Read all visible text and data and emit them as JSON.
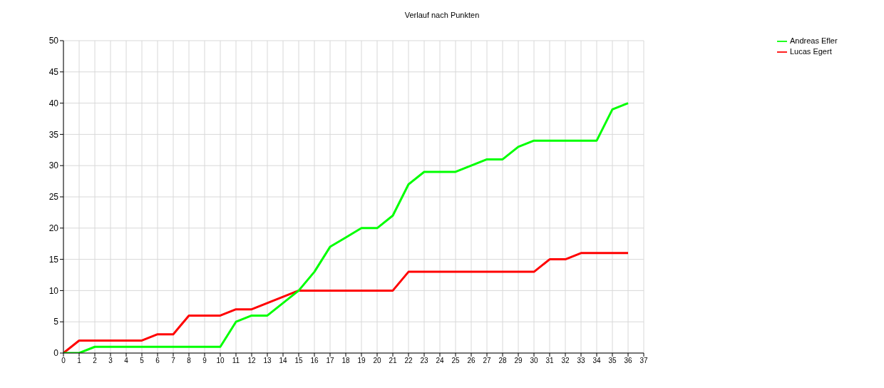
{
  "chart_data": {
    "type": "line",
    "title": "Verlauf nach Punkten",
    "x": [
      0,
      1,
      2,
      3,
      4,
      5,
      6,
      7,
      8,
      9,
      10,
      11,
      12,
      13,
      14,
      15,
      16,
      17,
      18,
      19,
      20,
      21,
      22,
      23,
      24,
      25,
      26,
      27,
      28,
      29,
      30,
      31,
      32,
      33,
      34,
      35,
      36
    ],
    "series": [
      {
        "name": "Lucas Egert",
        "color": "#ff0000",
        "values": [
          0,
          2,
          2,
          2,
          2,
          2,
          3,
          3,
          6,
          6,
          6,
          7,
          7,
          8,
          9,
          10,
          10,
          10,
          10,
          10,
          10,
          10,
          13,
          13,
          13,
          13,
          13,
          13,
          13,
          13,
          13,
          15,
          15,
          16,
          16,
          16,
          16
        ]
      },
      {
        "name": "Andreas Efler",
        "color": "#00ff00",
        "values": [
          0,
          0,
          1,
          1,
          1,
          1,
          1,
          1,
          1,
          1,
          1,
          5,
          6,
          6,
          8,
          10,
          13,
          17,
          18.5,
          20,
          20,
          22,
          27,
          29,
          29,
          29,
          30,
          31,
          31,
          33,
          34,
          34,
          34,
          34,
          34,
          39,
          40
        ]
      }
    ],
    "xlim": [
      0,
      37
    ],
    "xticks": [
      0,
      1,
      2,
      3,
      4,
      5,
      6,
      7,
      8,
      9,
      10,
      11,
      12,
      13,
      14,
      15,
      16,
      17,
      18,
      19,
      20,
      21,
      22,
      23,
      24,
      25,
      26,
      27,
      28,
      29,
      30,
      31,
      32,
      33,
      34,
      35,
      36,
      37
    ],
    "ylim": [
      0,
      50
    ],
    "yticks": [
      0,
      5,
      10,
      15,
      20,
      25,
      30,
      35,
      40,
      45,
      50
    ],
    "grid": true,
    "legend": "top right",
    "marker": "none",
    "line_style": "solid"
  }
}
